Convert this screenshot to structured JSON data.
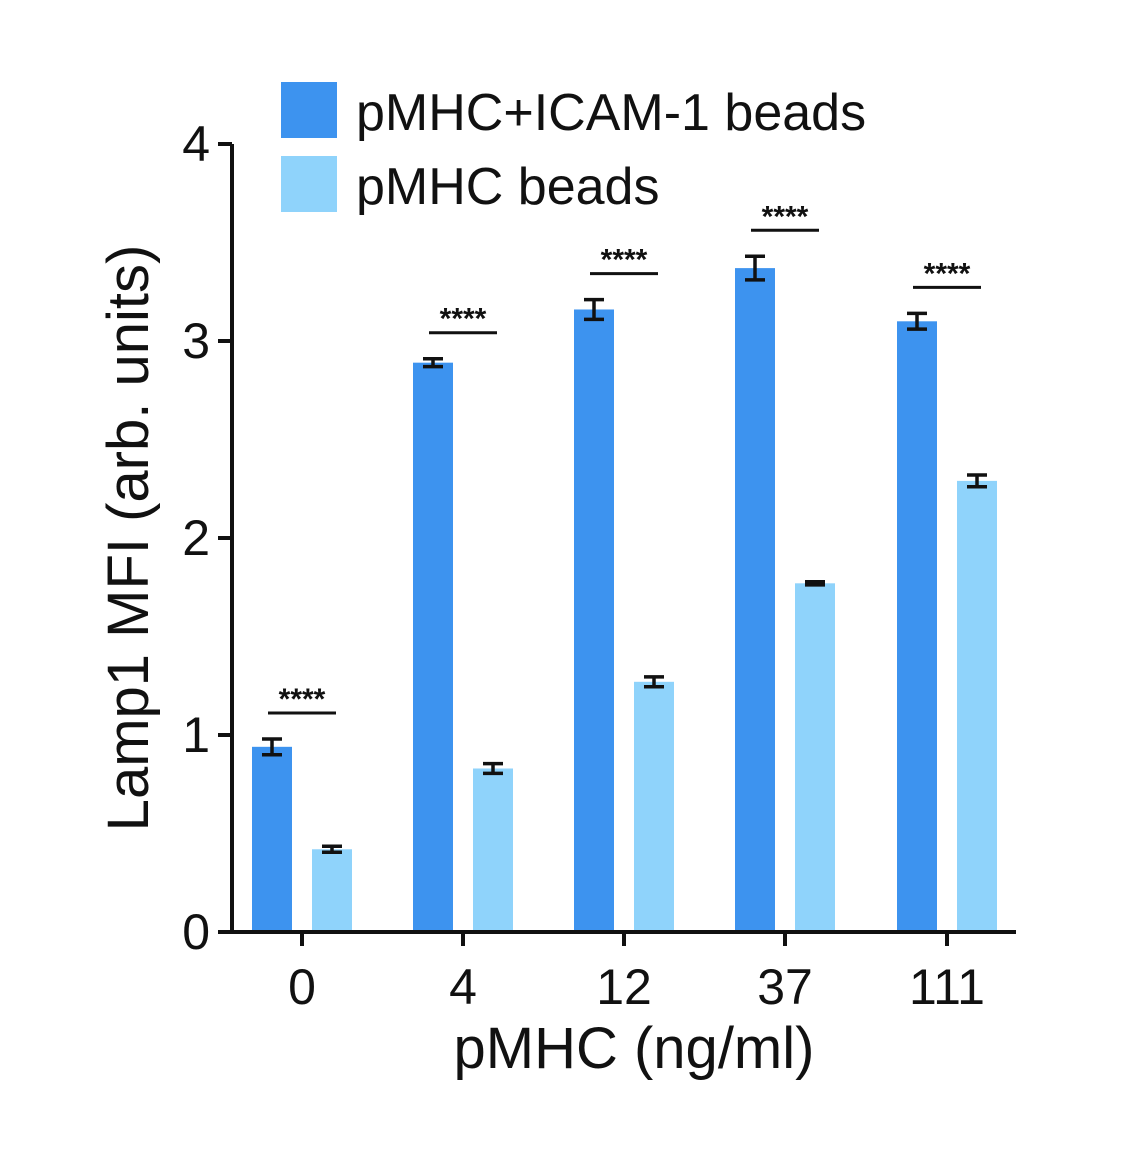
{
  "chart_data": {
    "type": "bar",
    "xlabel": "pMHC (ng/ml)",
    "ylabel": "Lamp1 MFI (arb. units)",
    "categories": [
      "0",
      "4",
      "12",
      "37",
      "111"
    ],
    "ylim": [
      0,
      4
    ],
    "yticks": [
      "0",
      "1",
      "2",
      "3",
      "4"
    ],
    "grid": false,
    "legend_position": "top",
    "series": [
      {
        "name": "pMHC+ICAM-1 beads",
        "color": "#3d93ef",
        "values": [
          0.94,
          2.89,
          3.16,
          3.37,
          3.1
        ],
        "errors": [
          0.04,
          0.02,
          0.05,
          0.06,
          0.04
        ]
      },
      {
        "name": "pMHC beads",
        "color": "#8fd3fb",
        "values": [
          0.42,
          0.83,
          1.27,
          1.77,
          2.29
        ],
        "errors": [
          0.015,
          0.025,
          0.025,
          0.008,
          0.03
        ]
      }
    ],
    "significance": [
      "****",
      "****",
      "****",
      "****",
      "****"
    ]
  }
}
